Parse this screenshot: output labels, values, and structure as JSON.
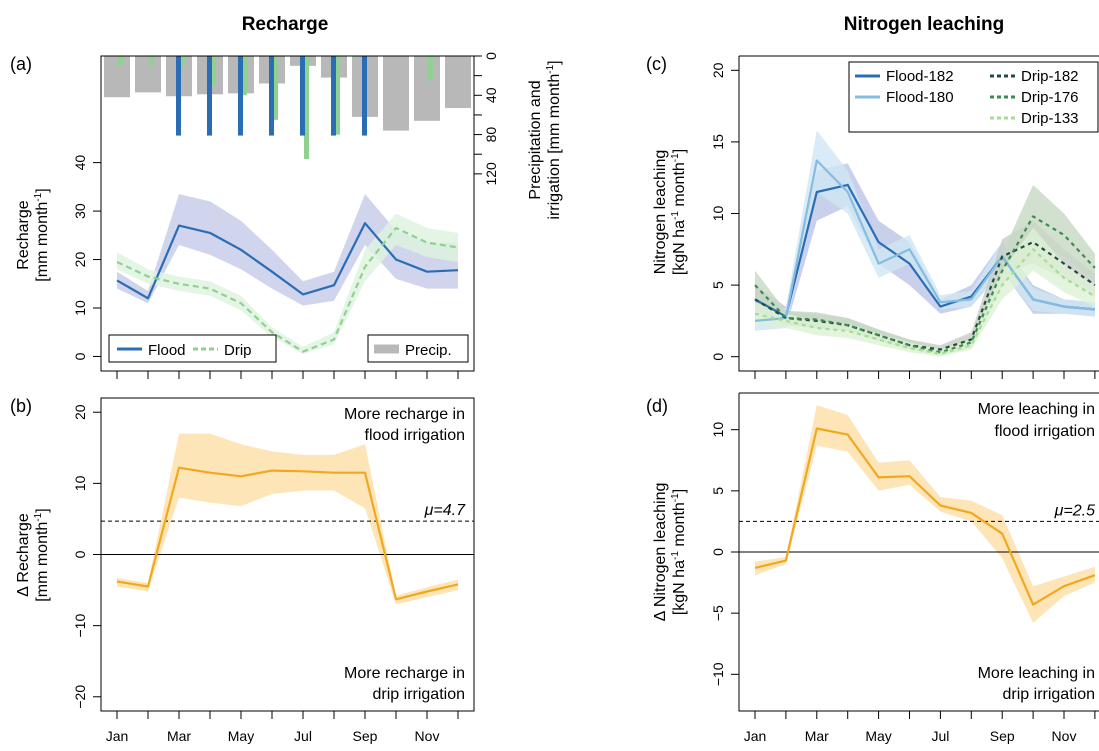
{
  "chart_data": [
    {
      "panel": "(a)",
      "title": "Recharge",
      "type": "line",
      "ylabel_line1": "Recharge",
      "ylabel_line2": "[mm month",
      "ylabel_suffix": "]",
      "y2label_line1": "Precipitation and",
      "y2label_line2": "irrigation [mm month",
      "y2label_suffix": "]",
      "ylim": [
        -3,
        62
      ],
      "yticks": [
        "0",
        "10",
        "20",
        "30",
        "40"
      ],
      "y2lim": [
        0,
        168
      ],
      "y2ticks": [
        "0",
        "40",
        "80",
        "120"
      ],
      "y2ticks_minor": [
        "20",
        "60",
        "100"
      ],
      "months": [
        1,
        2,
        3,
        4,
        5,
        6,
        7,
        8,
        9,
        10,
        11,
        12
      ],
      "series": [
        {
          "name": "Flood",
          "color": "#2a6db5",
          "dash": "",
          "values": [
            15.7,
            12.0,
            27.0,
            25.5,
            22.0,
            17.5,
            12.8,
            14.7,
            27.5,
            20.0,
            17.5,
            17.8
          ],
          "lower": [
            14.0,
            11.0,
            23.0,
            21.0,
            18.0,
            14.0,
            10.5,
            11.5,
            23.0,
            16.0,
            14.0,
            14.0
          ],
          "upper": [
            17.5,
            13.5,
            33.5,
            32.0,
            28.0,
            22.0,
            15.5,
            17.5,
            33.5,
            26.0,
            23.5,
            23.5
          ],
          "band": "#c6c9e8"
        },
        {
          "name": "Drip",
          "color": "#8fd18f",
          "dash": "6,4",
          "values": [
            19.5,
            16.5,
            15.0,
            14.0,
            11.0,
            5.0,
            1.0,
            3.5,
            18.5,
            26.5,
            23.5,
            22.5
          ],
          "lower": [
            18.0,
            15.0,
            13.5,
            12.5,
            9.5,
            4.0,
            0.5,
            2.5,
            15.5,
            23.0,
            20.5,
            19.5
          ],
          "upper": [
            21.5,
            18.0,
            16.5,
            15.5,
            12.5,
            6.0,
            2.0,
            5.0,
            22.0,
            29.5,
            26.5,
            25.5
          ],
          "band": "#dff2df"
        }
      ],
      "precip": {
        "name": "Precip.",
        "color": "#b8b8b8",
        "values": [
          42,
          37,
          41,
          39,
          38,
          28,
          10,
          22,
          62,
          76,
          66,
          53
        ]
      },
      "irrigation_flood": {
        "color": "#2a6db5",
        "values": [
          0,
          0,
          81,
          81,
          81,
          81,
          81,
          81,
          81,
          0,
          0,
          0
        ]
      },
      "irrigation_drip": {
        "color": "#8fd18f",
        "values": [
          10,
          10,
          10,
          30,
          40,
          65,
          105,
          80,
          0,
          0,
          25,
          0
        ]
      }
    },
    {
      "panel": "(b)",
      "type": "line",
      "ylabel_line1": "Δ Recharge",
      "ylabel_line2": "[mm month",
      "ylabel_suffix": "]",
      "ylim": [
        -22,
        22
      ],
      "yticks": [
        "-20",
        "-10",
        "0",
        "10",
        "20"
      ],
      "xticks": [
        "Jan",
        "Mar",
        "May",
        "Jul",
        "Sep",
        "Nov"
      ],
      "months": [
        1,
        2,
        3,
        4,
        5,
        6,
        7,
        8,
        9,
        10,
        11,
        12
      ],
      "series": [
        {
          "name": "",
          "color": "#f2a81e",
          "values": [
            -3.8,
            -4.5,
            12.2,
            11.5,
            11.0,
            11.8,
            11.7,
            11.5,
            11.5,
            -6.3,
            -5.2,
            -4.2
          ],
          "lower": [
            -4.5,
            -5.2,
            8.0,
            7.3,
            6.8,
            8.5,
            9.0,
            9.0,
            6.5,
            -7.0,
            -6.0,
            -5.0
          ],
          "upper": [
            -3.3,
            -4.0,
            17.0,
            17.0,
            15.5,
            14.5,
            14.0,
            14.0,
            15.5,
            -5.8,
            -4.6,
            -3.5
          ],
          "band": "#fddfa6"
        }
      ],
      "mean": {
        "value": 4.7,
        "label": "μ=4.7"
      },
      "note_top_1": "More recharge in",
      "note_top_2": "flood irrigation",
      "note_bottom_1": "More recharge in",
      "note_bottom_2": "drip irrigation"
    },
    {
      "panel": "(c)",
      "title": "Nitrogen leaching",
      "type": "line",
      "ylabel_line1": "Nitrogen leaching",
      "ylabel_line2": "[kgN ha",
      "ylabel_mid": " month",
      "ylabel_suffix": "]",
      "ylim": [
        -1,
        21
      ],
      "yticks": [
        "0",
        "5",
        "10",
        "15",
        "20"
      ],
      "months": [
        1,
        2,
        3,
        4,
        5,
        6,
        7,
        8,
        9,
        10,
        11,
        12
      ],
      "series": [
        {
          "name": "Flood-182",
          "color": "#2a6db5",
          "dash": "",
          "values": [
            4.0,
            2.8,
            11.5,
            12.0,
            8.0,
            6.5,
            3.5,
            4.2,
            7.0,
            4.0,
            3.5,
            3.3
          ],
          "lower": [
            3.0,
            2.0,
            9.5,
            10.5,
            6.5,
            5.0,
            3.0,
            3.5,
            6.0,
            3.0,
            3.0,
            2.8
          ],
          "upper": [
            5.0,
            3.5,
            13.0,
            13.5,
            9.5,
            8.0,
            4.0,
            5.0,
            8.0,
            5.0,
            4.0,
            3.8
          ],
          "band": "#bcc4e6"
        },
        {
          "name": "Flood-180",
          "color": "#85bde0",
          "dash": "",
          "values": [
            2.5,
            2.7,
            13.7,
            11.5,
            6.5,
            7.5,
            3.8,
            4.0,
            7.0,
            4.0,
            3.5,
            3.3
          ],
          "lower": [
            1.8,
            2.0,
            11.5,
            10.0,
            5.5,
            6.5,
            3.3,
            3.5,
            6.0,
            3.2,
            3.0,
            2.8
          ],
          "upper": [
            3.2,
            3.4,
            15.8,
            13.0,
            7.5,
            8.5,
            4.3,
            4.6,
            8.0,
            4.8,
            4.0,
            3.8
          ],
          "band": "#cfe6f4"
        },
        {
          "name": "Drip-182",
          "color": "#1e4d3c",
          "dash": "4,4",
          "values": [
            4.0,
            2.7,
            2.5,
            2.2,
            1.5,
            0.8,
            0.5,
            1.2,
            7.0,
            8.0,
            6.5,
            5.0
          ],
          "lower": [
            3.3,
            2.2,
            2.0,
            1.8,
            1.1,
            0.5,
            0.3,
            0.8,
            5.8,
            6.5,
            5.5,
            4.2
          ],
          "upper": [
            4.8,
            3.2,
            3.0,
            2.7,
            1.9,
            1.2,
            0.8,
            1.7,
            8.2,
            9.5,
            7.5,
            5.8
          ],
          "band": "#c8ccc8"
        },
        {
          "name": "Drip-176",
          "color": "#3e8a50",
          "dash": "4,4",
          "values": [
            5.0,
            2.7,
            2.6,
            2.2,
            1.5,
            0.8,
            0.3,
            1.0,
            6.0,
            9.8,
            8.5,
            6.2
          ],
          "lower": [
            4.0,
            2.2,
            2.0,
            1.8,
            1.1,
            0.5,
            0.1,
            0.6,
            5.0,
            8.0,
            7.0,
            5.2
          ],
          "upper": [
            6.0,
            3.2,
            3.1,
            2.7,
            1.9,
            1.2,
            0.6,
            1.5,
            7.2,
            12.0,
            10.0,
            7.2
          ],
          "band": "#c7d8c4"
        },
        {
          "name": "Drip-133",
          "color": "#a4df8f",
          "dash": "4,4",
          "values": [
            3.0,
            2.5,
            2.0,
            1.8,
            1.2,
            0.6,
            0.2,
            0.8,
            5.0,
            7.5,
            5.5,
            4.2
          ],
          "lower": [
            2.3,
            2.0,
            1.5,
            1.3,
            0.8,
            0.3,
            0.0,
            0.5,
            4.0,
            6.0,
            4.5,
            3.5
          ],
          "upper": [
            3.8,
            3.0,
            2.5,
            2.3,
            1.6,
            1.0,
            0.5,
            1.2,
            6.0,
            9.0,
            6.5,
            5.0
          ],
          "band": "#dff1d6"
        }
      ]
    },
    {
      "panel": "(d)",
      "type": "line",
      "ylabel_line1": "Δ Nitrogen leaching",
      "ylabel_line2": "[kgN ha",
      "ylabel_mid": " month",
      "ylabel_suffix": "]",
      "ylim": [
        -13,
        13
      ],
      "yticks": [
        "-10",
        "-5",
        "0",
        "5",
        "10"
      ],
      "xticks": [
        "Jan",
        "Mar",
        "May",
        "Jul",
        "Sep",
        "Nov"
      ],
      "months": [
        1,
        2,
        3,
        4,
        5,
        6,
        7,
        8,
        9,
        10,
        11,
        12
      ],
      "series": [
        {
          "name": "",
          "color": "#f2a81e",
          "values": [
            -1.3,
            -0.7,
            10.1,
            9.6,
            6.1,
            6.2,
            3.8,
            3.2,
            1.5,
            -4.3,
            -2.8,
            -1.9
          ],
          "lower": [
            -1.9,
            -1.0,
            8.7,
            8.2,
            5.0,
            5.5,
            3.3,
            2.5,
            -0.5,
            -5.8,
            -3.6,
            -2.5
          ],
          "upper": [
            -0.8,
            -0.4,
            12.0,
            11.2,
            7.3,
            7.5,
            4.5,
            4.2,
            3.0,
            -2.8,
            -2.0,
            -1.2
          ],
          "band": "#fddfa6"
        }
      ],
      "mean": {
        "value": 2.5,
        "label": "μ=2.5"
      },
      "note_top_1": "More leaching in",
      "note_top_2": "flood irrigation",
      "note_bottom_1": "More leaching in",
      "note_bottom_2": "drip irrigation"
    }
  ]
}
